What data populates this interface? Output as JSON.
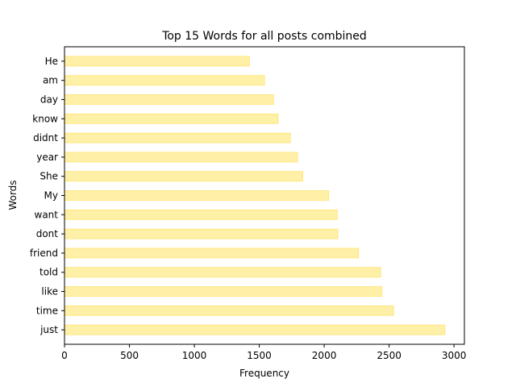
{
  "chart_data": {
    "type": "bar",
    "orientation": "horizontal",
    "title": "Top 15 Words for all posts combined",
    "xlabel": "Frequency",
    "ylabel": "Words",
    "xlim": [
      0,
      3080
    ],
    "xticks": [
      0,
      500,
      1000,
      1500,
      2000,
      2500,
      3000
    ],
    "grid": false,
    "bar_color": "#fff0a8",
    "bar_edge_color": "#ffe680",
    "categories": [
      "just",
      "time",
      "like",
      "told",
      "friend",
      "dont",
      "want",
      "My",
      "She",
      "year",
      "didnt",
      "know",
      "day",
      "am",
      "He"
    ],
    "values": [
      2930,
      2535,
      2445,
      2435,
      2265,
      2105,
      2100,
      2035,
      1835,
      1795,
      1740,
      1645,
      1610,
      1540,
      1425
    ]
  }
}
